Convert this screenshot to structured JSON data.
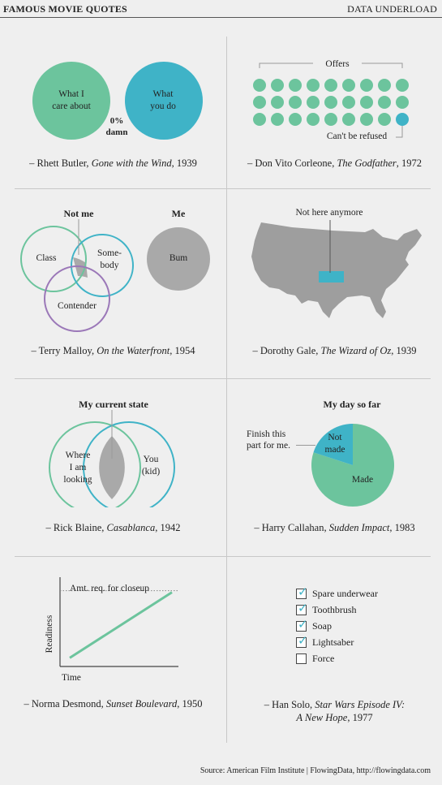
{
  "header": {
    "title": "FAMOUS MOVIE QUOTES",
    "brand": "DATA UNDERLOAD"
  },
  "colors": {
    "green": "#6cc49d",
    "teal": "#3fb3c7",
    "gray": "#a9a9a9",
    "purple": "#9b78b8",
    "map": "#9e9e9e"
  },
  "panels": {
    "butler": {
      "circle_left": "What I care about",
      "circle_left_l1": "What I",
      "circle_left_l2": "care about",
      "circle_right_l1": "What",
      "circle_right_l2": "you do",
      "overlap_l1": "0%",
      "overlap_l2": "damn",
      "caption_name": "– Rhett Butler, ",
      "caption_film": "Gone with the Wind",
      "caption_year": ", 1939"
    },
    "corleone": {
      "top_label": "Offers",
      "bottom_label": "Can't be refused",
      "caption_name": "– Don Vito Corleone, ",
      "caption_film": "The Godfather",
      "caption_year": ", 1972"
    },
    "malloy": {
      "title_left": "Not me",
      "title_right": "Me",
      "class": "Class",
      "somebody_l1": "Some-",
      "somebody_l2": "body",
      "contender": "Contender",
      "bum": "Bum",
      "caption_name": "– Terry Malloy, ",
      "caption_film": "On the Waterfront",
      "caption_year": ", 1954"
    },
    "gale": {
      "label": "Not here anymore",
      "caption_name": "– Dorothy Gale, ",
      "caption_film": "The Wizard of Oz",
      "caption_year": ", 1939"
    },
    "blaine": {
      "title": "My current state",
      "left_l1": "Where",
      "left_l2": "I am",
      "left_l3": "looking",
      "right_l1": "You",
      "right_l2": "(kid)",
      "caption_name": "– Rick Blaine, ",
      "caption_film": "Casablanca",
      "caption_year": ", 1942"
    },
    "callahan": {
      "title": "My day so far",
      "annot_l1": "Finish this",
      "annot_l2": "part for me.",
      "caption_name": "– Harry Callahan, ",
      "caption_film": "Sudden Impact",
      "caption_year": ", 1983"
    },
    "desmond": {
      "threshold_label": "Amt. req. for closeup",
      "ylabel": "Readiness",
      "xlabel": "Time",
      "caption_name": "– Norma Desmond, ",
      "caption_film": "Sunset Boulevard",
      "caption_year": ", 1950"
    },
    "solo": {
      "items": [
        {
          "label": "Spare underwear",
          "checked": true
        },
        {
          "label": "Toothbrush",
          "checked": true
        },
        {
          "label": "Soap",
          "checked": true
        },
        {
          "label": "Lightsaber",
          "checked": true
        },
        {
          "label": "Force",
          "checked": false
        }
      ],
      "caption_name": "– Han Solo, ",
      "caption_film_l1": "Star Wars Episode IV:",
      "caption_film_l2": "A New Hope",
      "caption_year": ", 1977"
    }
  },
  "chart_data": [
    {
      "type": "pie",
      "title": "My day so far",
      "slices": [
        {
          "name": "Made",
          "value": 80
        },
        {
          "name": "Not made",
          "value": 20
        }
      ]
    },
    {
      "type": "line",
      "title": "",
      "xlabel": "Time",
      "ylabel": "Readiness",
      "x": [
        0,
        1
      ],
      "y": [
        0.1,
        0.9
      ],
      "threshold": 0.9,
      "threshold_label": "Amt. req. for closeup"
    }
  ],
  "footer": {
    "source": "Source: American Film Institute  |  FlowingData, http://flowingdata.com"
  }
}
